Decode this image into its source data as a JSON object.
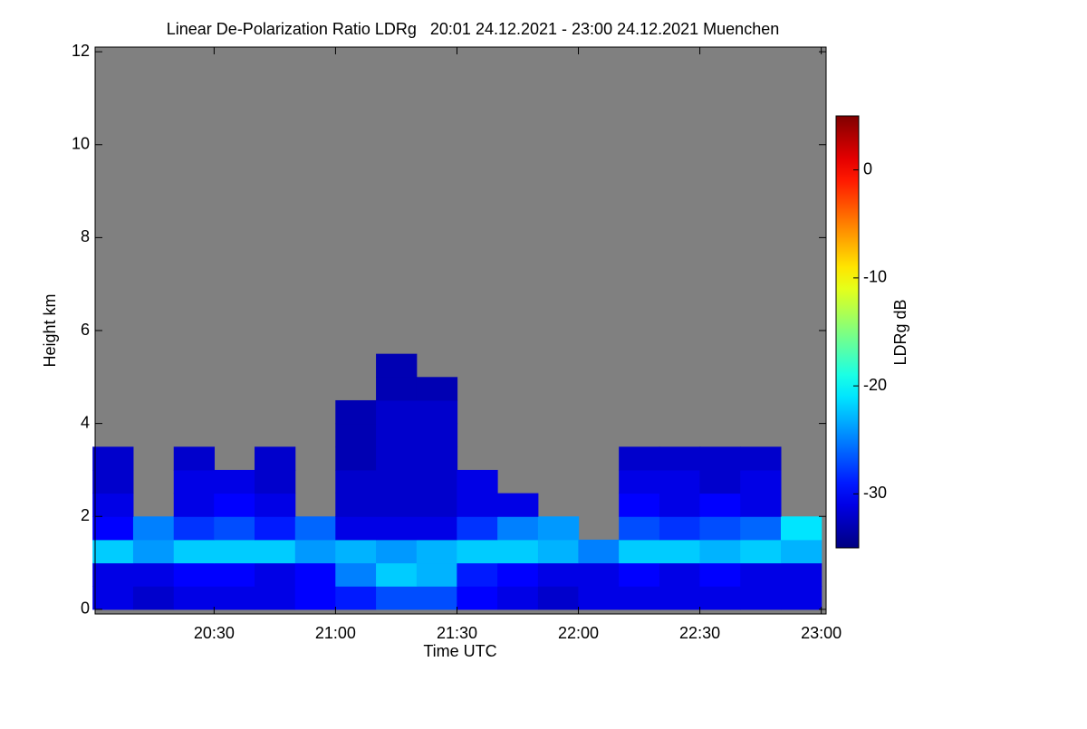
{
  "chart_data": {
    "type": "heatmap",
    "title": "Linear De-Polarization Ratio LDRg   20:01 24.12.2021 - 23:00 24.12.2021 Muenchen",
    "x_label": "Time UTC",
    "y_label": "Height km",
    "colorbar_label": "LDRg dB",
    "x": [
      20.083,
      20.25,
      20.417,
      20.583,
      20.75,
      20.917,
      21.083,
      21.25,
      21.417,
      21.583,
      21.75,
      21.917,
      22.083,
      22.25,
      22.417,
      22.583,
      22.75,
      22.917
    ],
    "y": [
      0.25,
      0.75,
      1.25,
      1.75,
      2.25,
      2.75,
      3.25,
      3.75,
      4.25,
      4.75,
      5.25
    ],
    "values": [
      [
        -31,
        -32,
        -31,
        -31,
        -31,
        -30,
        -29,
        -27,
        -27,
        -30,
        -31,
        -32,
        -31,
        -31,
        -31,
        -31,
        -31,
        -31
      ],
      [
        -31,
        -31,
        -30,
        -30,
        -31,
        -30,
        -25,
        -22,
        -23,
        -29,
        -30,
        -31,
        -31,
        -30,
        -31,
        -30,
        -31,
        -31
      ],
      [
        -22,
        -24,
        -22,
        -22,
        -22,
        -24,
        -23,
        -24,
        -23,
        -22,
        -22,
        -23,
        -25,
        -22,
        -22,
        -23,
        -22,
        -23
      ],
      [
        -30,
        -25,
        -28,
        -27,
        -29,
        -26,
        -31,
        -31,
        -31,
        -28,
        -25,
        -24,
        null,
        -27,
        -28,
        -27,
        -26,
        -21
      ],
      [
        -31,
        null,
        -31,
        -30,
        -31,
        null,
        -32,
        -32,
        -32,
        -31,
        -31,
        null,
        null,
        -30,
        -31,
        -30,
        -31,
        null
      ],
      [
        -32,
        null,
        -31,
        -31,
        -32,
        null,
        -32,
        -32,
        -32,
        -31,
        null,
        null,
        null,
        -31,
        -31,
        -32,
        -31,
        null
      ],
      [
        -32,
        null,
        -32,
        null,
        -32,
        null,
        -33,
        -32,
        -32,
        null,
        null,
        null,
        null,
        -32,
        -32,
        -32,
        -32,
        null
      ],
      [
        null,
        null,
        null,
        null,
        null,
        null,
        -33,
        -32,
        -32,
        null,
        null,
        null,
        null,
        null,
        null,
        null,
        null,
        null
      ],
      [
        null,
        null,
        null,
        null,
        null,
        null,
        -33,
        -32,
        -32,
        null,
        null,
        null,
        null,
        null,
        null,
        null,
        null,
        null
      ],
      [
        null,
        null,
        null,
        null,
        null,
        null,
        null,
        -33,
        -33,
        null,
        null,
        null,
        null,
        null,
        null,
        null,
        null,
        null
      ],
      [
        null,
        null,
        null,
        null,
        null,
        null,
        null,
        -33,
        null,
        null,
        null,
        null,
        null,
        null,
        null,
        null,
        null,
        null
      ]
    ],
    "xlim": [
      20.01,
      23.02
    ],
    "xticks": [
      {
        "value": 20.5,
        "label": "20:30"
      },
      {
        "value": 21,
        "label": "21:00"
      },
      {
        "value": 21.5,
        "label": "21:30"
      },
      {
        "value": 22,
        "label": "22:00"
      },
      {
        "value": 22.5,
        "label": "22:30"
      },
      {
        "value": 23,
        "label": "23:00"
      }
    ],
    "ylim": [
      -0.1,
      12.1
    ],
    "yticks": [
      0,
      2,
      4,
      6,
      8,
      10,
      12
    ],
    "zlim": [
      -35,
      5
    ],
    "zticks": [
      0,
      -10,
      -20,
      -30
    ],
    "no_data_color": "#808080",
    "colormap": "jet"
  }
}
